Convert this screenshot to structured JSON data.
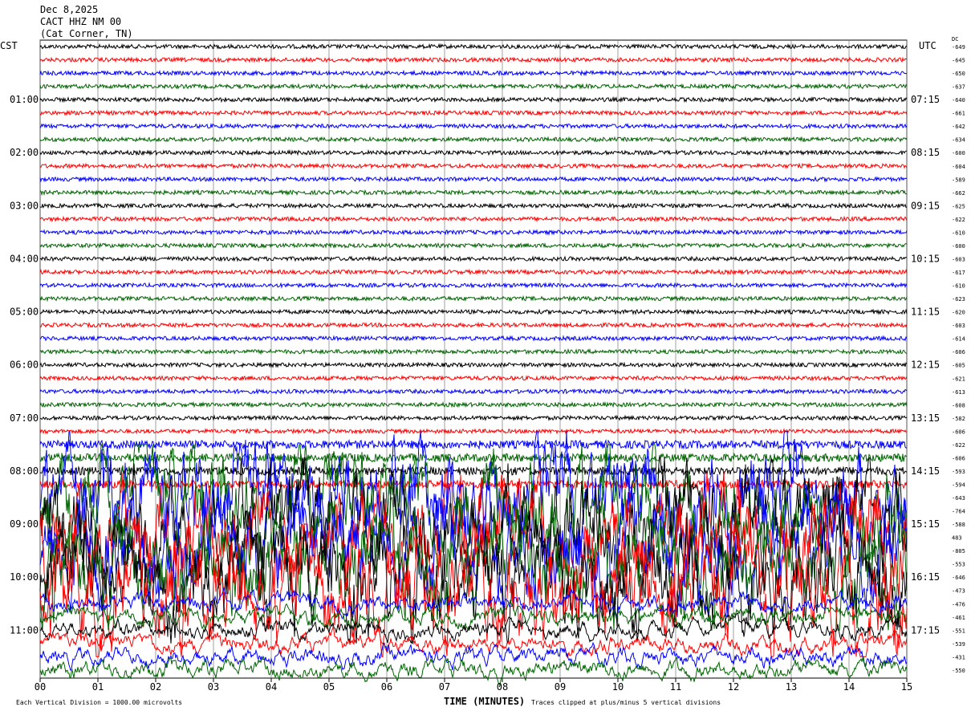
{
  "header": {
    "date": "Dec 8,2025",
    "station": "CACT HHZ NM 00",
    "location": "(Cat Corner, TN)"
  },
  "chart_data": {
    "type": "line",
    "title": "Dec 8,2025 CACT HHZ NM 00 (Cat Corner, TN)",
    "left_axis_label": "CST",
    "right_axis_label": "UTC",
    "dc_label": "DC",
    "xlabel": "TIME (MINUTES)",
    "xlim": [
      0,
      15
    ],
    "x_ticks": [
      "00",
      "01",
      "02",
      "03",
      "04",
      "05",
      "06",
      "07",
      "08",
      "09",
      "10",
      "11",
      "12",
      "13",
      "14",
      "15"
    ],
    "left_hour_labels": [
      "01:00",
      "02:00",
      "03:00",
      "04:00",
      "05:00",
      "06:00",
      "07:00",
      "08:00",
      "09:00",
      "10:00",
      "11:00"
    ],
    "right_hour_labels": [
      "07:15",
      "08:15",
      "09:15",
      "10:15",
      "11:15",
      "12:15",
      "13:15",
      "14:15",
      "15:15",
      "16:15",
      "17:15"
    ],
    "trace_colors": [
      "#000000",
      "#ff0000",
      "#0000ff",
      "#006400"
    ],
    "dc_offsets": [
      -649,
      -645,
      -650,
      -637,
      -640,
      -661,
      -642,
      -634,
      -600,
      -604,
      -589,
      -662,
      -625,
      -622,
      -610,
      -600,
      -603,
      -617,
      -610,
      -623,
      -620,
      -603,
      -614,
      -606,
      -605,
      -621,
      -613,
      -608,
      -582,
      -606,
      -622,
      -606,
      -593,
      -594,
      -643,
      -764,
      -588,
      483,
      -805,
      -553,
      -646,
      -473,
      -476,
      -461,
      -551,
      -539,
      -431,
      -550
    ],
    "grid": true,
    "scale_note": "Each Vertical Division = 1000.00 microvolts",
    "clip_note": "Traces clipped at plus/minus 5 vertical divisions"
  }
}
